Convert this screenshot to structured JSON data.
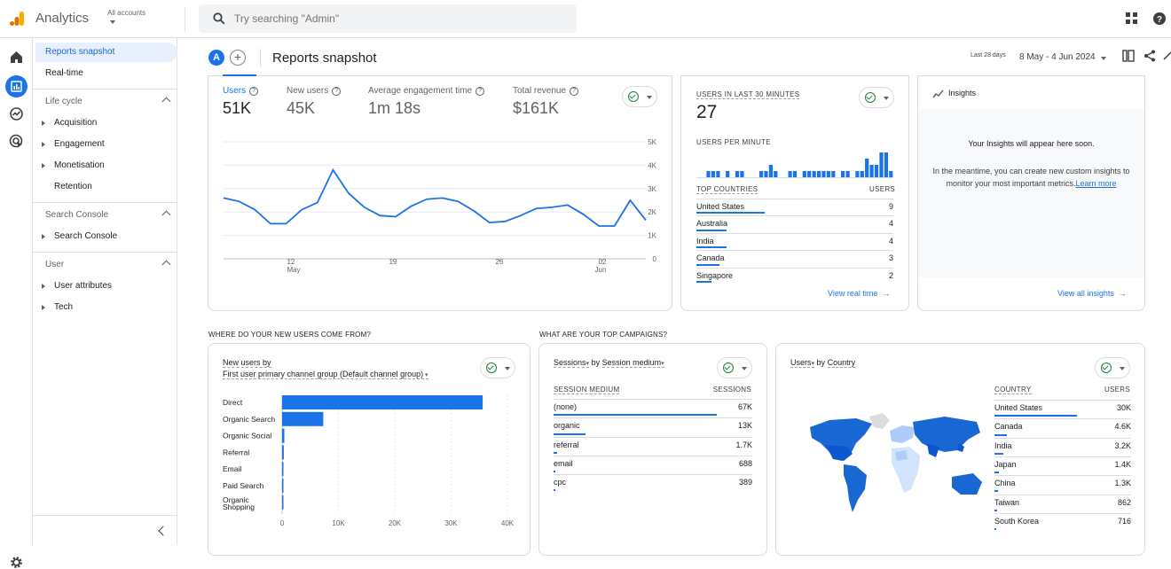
{
  "app": {
    "title": "Analytics",
    "account_label": "All accounts",
    "search_placeholder": "Try searching \"Admin\""
  },
  "nav": {
    "selected": "Reports snapshot",
    "realtime": "Real-time",
    "lifecycle": {
      "label": "Life cycle",
      "items": [
        "Acquisition",
        "Engagement",
        "Monetisation"
      ],
      "plain": "Retention"
    },
    "search_console": {
      "label": "Search Console",
      "items": [
        "Search Console"
      ]
    },
    "user": {
      "label": "User",
      "items": [
        "User attributes",
        "Tech"
      ]
    }
  },
  "header": {
    "avatar": "A",
    "title": "Reports snapshot",
    "range_label": "Last 28 days",
    "range": "8 May - 4 Jun 2024"
  },
  "metrics": [
    {
      "label": "Users",
      "value": "51K"
    },
    {
      "label": "New users",
      "value": "45K"
    },
    {
      "label": "Average engagement time",
      "value": "1m 18s"
    },
    {
      "label": "Total revenue",
      "value": "$161K"
    }
  ],
  "chart_data": [
    {
      "type": "line",
      "title": "",
      "series": [
        {
          "name": "Users",
          "values": [
            2.6,
            2.45,
            2.1,
            1.5,
            1.5,
            2.1,
            2.4,
            3.8,
            2.8,
            2.2,
            1.85,
            1.8,
            2.25,
            2.55,
            2.6,
            2.45,
            2.05,
            1.55,
            1.6,
            1.85,
            2.15,
            2.2,
            2.3,
            1.9,
            1.4,
            1.4,
            2.5,
            1.65
          ]
        }
      ],
      "x_tick_labels": [
        "12",
        "May",
        "19",
        "26",
        "02",
        "Jun"
      ],
      "y_tick_labels": [
        "5K",
        "4K",
        "3K",
        "2K",
        "1K",
        "0"
      ],
      "ylim": [
        0,
        5
      ],
      "grid": true
    },
    {
      "type": "bar",
      "title": "USERS PER MINUTE",
      "values": [
        0,
        0,
        1,
        1,
        1,
        0,
        1,
        0,
        1,
        1,
        0,
        0,
        0,
        1,
        1,
        2,
        1,
        0,
        0,
        1,
        1,
        0,
        1,
        1,
        1,
        1,
        1,
        1,
        1,
        0,
        1,
        1,
        0,
        1,
        1,
        3,
        2,
        2,
        4,
        4,
        1
      ]
    },
    {
      "type": "bar",
      "title": "New users by First user primary channel group (Default channel group)",
      "categories": [
        "Direct",
        "Organic Search",
        "Organic Social",
        "Referral",
        "Email",
        "Paid Search",
        "Organic Shopping"
      ],
      "values": [
        35600,
        7300,
        400,
        300,
        200,
        150,
        60
      ],
      "x_tick_labels": [
        "0",
        "10K",
        "20K",
        "30K",
        "40K"
      ],
      "xlim": [
        0,
        40000
      ]
    }
  ],
  "realtime": {
    "title": "USERS IN LAST 30 MINUTES",
    "value": "27",
    "per_minute": "USERS PER MINUTE",
    "col1": "TOP COUNTRIES",
    "col2": "USERS",
    "rows": [
      {
        "name": "United States",
        "value": "9",
        "frac": 0.9
      },
      {
        "name": "Australia",
        "value": "4",
        "frac": 0.4
      },
      {
        "name": "India",
        "value": "4",
        "frac": 0.4
      },
      {
        "name": "Canada",
        "value": "3",
        "frac": 0.3
      },
      {
        "name": "Singapore",
        "value": "2",
        "frac": 0.2
      }
    ],
    "link": "View real time"
  },
  "insights": {
    "title": "Insights",
    "msg": "Your Insights will appear here soon.",
    "desc": "In the meantime, you can create new custom insights to monitor your most important metrics.",
    "learn": "Learn more",
    "link": "View all insights"
  },
  "sections": {
    "new_users": "WHERE DO YOUR NEW USERS COME FROM?",
    "campaigns": "WHAT ARE YOUR TOP CAMPAIGNS?"
  },
  "new_users_card": {
    "title": "New users by",
    "subtitle": "First user primary channel group (Default channel group)"
  },
  "campaigns": {
    "dim": "Sessions",
    "by": "by",
    "medium": "Session medium",
    "col1": "SESSION MEDIUM",
    "col2": "SESSIONS",
    "rows": [
      {
        "name": "(none)",
        "value": "67K",
        "frac": 0.92
      },
      {
        "name": "organic",
        "value": "13K",
        "frac": 0.18
      },
      {
        "name": "referral",
        "value": "1.7K",
        "frac": 0.02
      },
      {
        "name": "email",
        "value": "688",
        "frac": 0.01
      },
      {
        "name": "cpc",
        "value": "389",
        "frac": 0.005
      }
    ]
  },
  "country": {
    "dim": "Users",
    "by": "by",
    "country": "Country",
    "col1": "COUNTRY",
    "col2": "USERS",
    "rows": [
      {
        "name": "United States",
        "value": "30K",
        "frac": 0.58
      },
      {
        "name": "Canada",
        "value": "4.6K",
        "frac": 0.09
      },
      {
        "name": "India",
        "value": "3.2K",
        "frac": 0.06
      },
      {
        "name": "Japan",
        "value": "1.4K",
        "frac": 0.03
      },
      {
        "name": "China",
        "value": "1.3K",
        "frac": 0.025
      },
      {
        "name": "Taiwan",
        "value": "862",
        "frac": 0.017
      },
      {
        "name": "South Korea",
        "value": "716",
        "frac": 0.014
      }
    ]
  },
  "colors": {
    "accent": "#1a73e8",
    "map_dark": "#1967d2",
    "map_light": "#aecbfa",
    "map_none": "#dadce0"
  }
}
